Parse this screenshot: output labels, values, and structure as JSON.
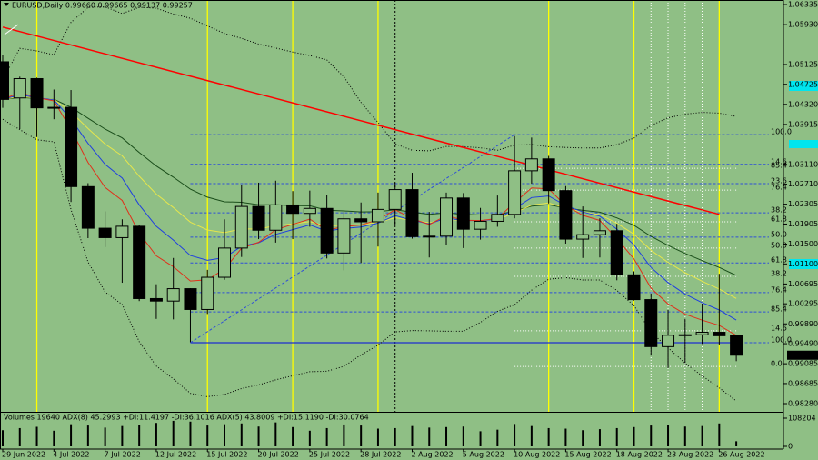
{
  "chart_data": {
    "type": "candlestick",
    "title": "EURUSD,Daily  0.99660 0.99665 0.99137 0.99257",
    "categories": [
      "29 Jun 2022",
      null,
      null,
      "4 Jul 2022",
      null,
      null,
      "7 Jul 2022",
      null,
      null,
      "12 Jul 2022",
      null,
      null,
      "15 Jul 2022",
      null,
      null,
      "20 Jul 2022",
      null,
      null,
      "25 Jul 2022",
      null,
      null,
      "28 Jul 2022",
      null,
      null,
      "2 Aug 2022",
      null,
      null,
      "5 Aug 2022",
      null,
      null,
      "10 Aug 2022",
      null,
      null,
      "15 Aug 2022",
      null,
      null,
      "18 Aug 2022",
      null,
      null,
      "23 Aug 2022",
      null,
      null,
      "26 Aug 2022",
      null
    ],
    "open": [
      1.0518,
      1.0445,
      1.0484,
      1.0425,
      1.0426,
      1.0266,
      1.0182,
      1.0163,
      1.0186,
      1.004,
      1.0035,
      1.006,
      1.0018,
      1.0083,
      1.0142,
      1.0226,
      1.0178,
      1.0229,
      1.0212,
      1.0222,
      1.0132,
      1.0201,
      1.0195,
      1.022,
      1.026,
      1.0165,
      1.0166,
      1.0243,
      1.018,
      1.0196,
      1.021,
      1.0298,
      1.0322,
      1.0258,
      1.016,
      1.0169,
      1.0177,
      1.0088,
      1.0038,
      0.9943,
      0.9966,
      0.9967,
      0.9972,
      0.9966
    ],
    "high": [
      1.0532,
      1.0488,
      1.0486,
      1.0462,
      1.0461,
      1.0273,
      1.0216,
      1.02,
      1.0188,
      1.0069,
      1.0122,
      1.0061,
      1.0098,
      1.02,
      1.0269,
      1.0274,
      1.0278,
      1.0257,
      1.0258,
      1.0249,
      1.0215,
      1.0234,
      1.0254,
      1.0274,
      1.0294,
      1.0215,
      1.0254,
      1.0253,
      1.0223,
      1.0248,
      1.0368,
      1.0365,
      1.0328,
      1.0267,
      1.0226,
      1.0202,
      1.0191,
      1.0095,
      1.005,
      1.0017,
      0.9999,
      1.003,
      1.009,
      0.99665
    ],
    "low": [
      1.0425,
      1.0382,
      1.0366,
      1.0402,
      1.0235,
      1.0162,
      1.0144,
      1.0072,
      1.0035,
      0.9999,
      0.9998,
      0.9952,
      1.0009,
      1.0078,
      1.0124,
      1.016,
      1.0153,
      1.016,
      1.0185,
      1.0121,
      1.0097,
      1.0112,
      1.0145,
      1.0188,
      1.0161,
      1.0123,
      1.0149,
      1.0142,
      1.0159,
      1.0185,
      1.0202,
      1.0272,
      1.0232,
      1.0151,
      1.0122,
      1.0123,
      1.0077,
      1.0036,
      0.9925,
      0.99,
      0.991,
      0.9948,
      0.9946,
      0.99137
    ],
    "close": [
      1.0442,
      1.0484,
      1.0425,
      1.0426,
      1.0266,
      1.0182,
      1.0163,
      1.0186,
      1.004,
      1.0035,
      1.006,
      1.0018,
      1.0083,
      1.0142,
      1.0226,
      1.0178,
      1.0229,
      1.0212,
      1.0222,
      1.0132,
      1.0201,
      1.0195,
      1.022,
      1.026,
      1.0165,
      1.0166,
      1.0243,
      1.018,
      1.0196,
      1.021,
      1.0298,
      1.0322,
      1.0258,
      1.016,
      1.0169,
      1.0177,
      1.0088,
      1.0038,
      0.9943,
      0.9966,
      0.9967,
      0.9972,
      0.9965,
      0.99257
    ],
    "ylim": [
      0.98115,
      1.06427
    ],
    "yticks": [
      1.06335,
      {
        "value": 1.0593,
        "label": "1.05930"
      },
      1.05125,
      1.04725,
      {
        "value": 1.0432,
        "label": "1.04320"
      },
      1.03915,
      {
        "value": 1.0311,
        "label": "1.03110"
      },
      {
        "value": 1.0271,
        "label": "1.02710"
      },
      1.02305,
      1.01905,
      {
        "value": 1.015,
        "label": "1.01500"
      },
      {
        "value": 1.011,
        "label": "1.01100"
      },
      1.00695,
      1.00295,
      {
        "value": 0.9989,
        "label": "0.99890"
      },
      {
        "value": 0.9949,
        "label": "0.99490"
      },
      0.99085,
      0.98685,
      {
        "value": 0.9828,
        "label": "0.98280"
      }
    ],
    "trend_line": {
      "color": "#ff0000",
      "start": {
        "x": "29 Jun 2022",
        "price": 1.0588
      },
      "end": {
        "x": "26 Aug 2022",
        "price": 1.021
      }
    },
    "fib_levels": [
      {
        "label": "100.0",
        "price": 1.0371
      },
      {
        "label": "14.6",
        "price": 1.0311
      },
      {
        "label": "23.6",
        "price": 1.0272
      },
      {
        "label": "38.2",
        "price": 1.0213
      },
      {
        "label": "50.0",
        "price": 1.0164
      },
      {
        "label": "61.8",
        "price": 1.0112
      },
      {
        "label": "76.4",
        "price": 1.0052
      },
      {
        "label": "85.4",
        "price": 1.0013
      },
      {
        "label": "100.0",
        "price": 0.9951
      }
    ],
    "fib_levels_2": [
      {
        "label": "85.4",
        "price": 1.0303
      },
      {
        "label": "76.4",
        "price": 1.0259
      },
      {
        "label": "61.8",
        "price": 1.0195
      },
      {
        "label": "50.0",
        "price": 1.0142
      },
      {
        "label": "38.2",
        "price": 1.0085
      },
      {
        "label": "14.6",
        "price": 0.9975
      },
      {
        "label": "0.0",
        "price": 0.9903
      }
    ],
    "volume": {
      "title": "Volumes 19640  ADX(8) 45.2993 +DI:11.4197 -DI:36.1016  ADX(5) 43.8009 +DI:15.1190 -DI:30.0764",
      "values": [
        62000,
        70000,
        75000,
        60000,
        85000,
        80000,
        72000,
        78000,
        82000,
        90000,
        98000,
        95000,
        80000,
        85000,
        88000,
        76000,
        92000,
        74000,
        60000,
        70000,
        84000,
        80000,
        68000,
        70000,
        78000,
        72000,
        74000,
        76000,
        58000,
        64000,
        86000,
        78000,
        70000,
        68000,
        62000,
        66000,
        70000,
        74000,
        80000,
        82000,
        76000,
        78000,
        88000,
        19640
      ],
      "ylim": [
        0,
        108204
      ],
      "yticks": [
        108204,
        0
      ]
    }
  }
}
